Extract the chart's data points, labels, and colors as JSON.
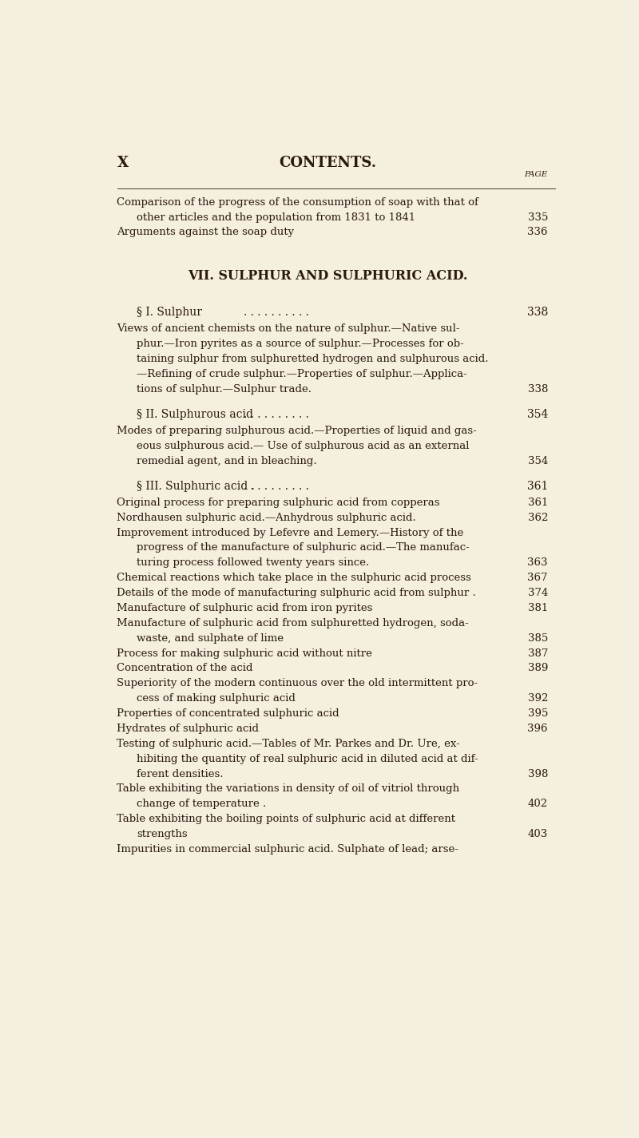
{
  "bg_color": "#f5efdf",
  "text_color": "#2a1a0e",
  "page_width": 8.0,
  "page_height": 14.25,
  "header_left": "X",
  "header_center": "CONTENTS.",
  "page_label": "PAGE",
  "lines": [
    {
      "type": "continuation",
      "indent": false,
      "text": "Comparison of the progress of the consumption of soap with that of",
      "page": null
    },
    {
      "type": "continuation_end",
      "indent": true,
      "text": "other articles and the population from 1831 to 1841",
      "page": "335"
    },
    {
      "type": "entry",
      "indent": false,
      "text": "Arguments against the soap duty",
      "page": "336"
    },
    {
      "type": "spacer"
    },
    {
      "type": "spacer"
    },
    {
      "type": "section_title",
      "text": "VII. SULPHUR AND SULPHURIC ACID."
    },
    {
      "type": "spacer"
    },
    {
      "type": "subsection",
      "text": "§ I. Sulphur",
      "page": "338"
    },
    {
      "type": "continuation",
      "indent": false,
      "text": "Views of ancient chemists on the nature of sulphur.—Native sul-",
      "page": null
    },
    {
      "type": "continuation",
      "indent": true,
      "text": "phur.—Iron pyrites as a source of sulphur.—Processes for ob-",
      "page": null
    },
    {
      "type": "continuation",
      "indent": true,
      "text": "taining sulphur from sulphuretted hydrogen and sulphurous acid.",
      "page": null
    },
    {
      "type": "continuation",
      "indent": true,
      "text": "—Refining of crude sulphur.—Properties of sulphur.—Applica-",
      "page": null
    },
    {
      "type": "continuation_end",
      "indent": true,
      "text": "tions of sulphur.—Sulphur trade.",
      "page": "338"
    },
    {
      "type": "spacer"
    },
    {
      "type": "subsection",
      "text": "§ II. Sulphurous acid",
      "page": "354"
    },
    {
      "type": "continuation",
      "indent": false,
      "text": "Modes of preparing sulphurous acid.—Properties of liquid and gas-",
      "page": null
    },
    {
      "type": "continuation",
      "indent": true,
      "text": "eous sulphurous acid.— Use of sulphurous acid as an external",
      "page": null
    },
    {
      "type": "continuation_end",
      "indent": true,
      "text": "remedial agent, and in bleaching.",
      "page": "354"
    },
    {
      "type": "spacer"
    },
    {
      "type": "subsection",
      "text": "§ III. Sulphuric acid .",
      "page": "361"
    },
    {
      "type": "entry",
      "indent": false,
      "text": "Original process for preparing sulphuric acid from copperas",
      "page": "361"
    },
    {
      "type": "entry",
      "indent": false,
      "text": "Nordhausen sulphuric acid.—Anhydrous sulphuric acid.",
      "page": "362"
    },
    {
      "type": "continuation",
      "indent": false,
      "text": "Improvement introduced by Lefevre and Lemery.—History of the",
      "page": null
    },
    {
      "type": "continuation",
      "indent": true,
      "text": "progress of the manufacture of sulphuric acid.—The manufac-",
      "page": null
    },
    {
      "type": "continuation_end",
      "indent": true,
      "text": "turing process followed twenty years since.",
      "page": "363"
    },
    {
      "type": "entry",
      "indent": false,
      "text": "Chemical reactions which take place in the sulphuric acid process",
      "page": "367"
    },
    {
      "type": "entry",
      "indent": false,
      "text": "Details of the mode of manufacturing sulphuric acid from sulphur .",
      "page": "374"
    },
    {
      "type": "entry",
      "indent": false,
      "text": "Manufacture of sulphuric acid from iron pyrites",
      "page": "381"
    },
    {
      "type": "continuation",
      "indent": false,
      "text": "Manufacture of sulphuric acid from sulphuretted hydrogen, soda-",
      "page": null
    },
    {
      "type": "continuation_end",
      "indent": true,
      "text": "waste, and sulphate of lime",
      "page": "385"
    },
    {
      "type": "entry",
      "indent": false,
      "text": "Process for making sulphuric acid without nitre",
      "page": "387"
    },
    {
      "type": "entry",
      "indent": false,
      "text": "Concentration of the acid",
      "page": "389"
    },
    {
      "type": "continuation",
      "indent": false,
      "text": "Superiority of the modern continuous over the old intermittent pro-",
      "page": null
    },
    {
      "type": "continuation_end",
      "indent": true,
      "text": "cess of making sulphuric acid",
      "page": "392"
    },
    {
      "type": "entry",
      "indent": false,
      "text": "Properties of concentrated sulphuric acid",
      "page": "395"
    },
    {
      "type": "entry",
      "indent": false,
      "text": "Hydrates of sulphuric acid",
      "page": "396"
    },
    {
      "type": "continuation",
      "indent": false,
      "text": "Testing of sulphuric acid.—Tables of Mr. Parkes and Dr. Ure, ex-",
      "page": null
    },
    {
      "type": "continuation",
      "indent": true,
      "text": "hibiting the quantity of real sulphuric acid in diluted acid at dif-",
      "page": null
    },
    {
      "type": "continuation_end",
      "indent": true,
      "text": "ferent densities.",
      "page": "398"
    },
    {
      "type": "continuation",
      "indent": false,
      "text": "Table exhibiting the variations in density of oil of vitriol through",
      "page": null
    },
    {
      "type": "continuation_end",
      "indent": true,
      "text": "change of temperature .",
      "page": "402"
    },
    {
      "type": "continuation",
      "indent": false,
      "text": "Table exhibiting the boiling points of sulphuric acid at different",
      "page": null
    },
    {
      "type": "continuation_end",
      "indent": true,
      "text": "strengths",
      "page": "403"
    },
    {
      "type": "entry",
      "indent": false,
      "text": "Impurities in commercial sulphuric acid. Sulphate of lead; arse-",
      "page": null
    }
  ]
}
